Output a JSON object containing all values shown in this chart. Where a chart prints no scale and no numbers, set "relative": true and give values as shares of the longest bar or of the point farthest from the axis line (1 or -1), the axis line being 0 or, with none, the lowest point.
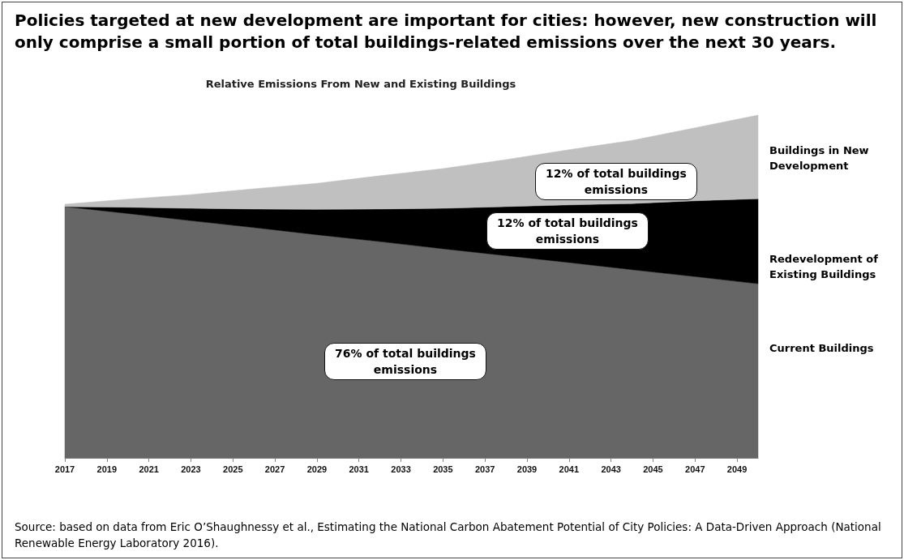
{
  "chart_data": {
    "type": "area",
    "stacked": true,
    "relative": true,
    "title": "Policies targeted at new development are important for cities: however, new construction will only comprise a small portion of total buildings-related emissions over the next 30 years.",
    "subtitle": "Relative Emissions From New and Existing Buildings",
    "x": [
      2017,
      2020,
      2023,
      2026,
      2029,
      2032,
      2035,
      2038,
      2041,
      2044,
      2047,
      2050
    ],
    "xlim": [
      2017,
      2050
    ],
    "xticks": [
      2017,
      2019,
      2021,
      2023,
      2025,
      2027,
      2029,
      2031,
      2033,
      2035,
      2037,
      2039,
      2041,
      2043,
      2045,
      2047,
      2049
    ],
    "series": [
      {
        "name": "Current Buildings",
        "color": "#666666",
        "values": [
          0.733,
          0.713,
          0.692,
          0.672,
          0.651,
          0.631,
          0.61,
          0.59,
          0.57,
          0.549,
          0.529,
          0.508
        ]
      },
      {
        "name": "Redevelopment of Existing Buildings",
        "color": "#000000",
        "values": [
          0,
          0.018,
          0.036,
          0.054,
          0.074,
          0.095,
          0.118,
          0.143,
          0.168,
          0.193,
          0.221,
          0.248
        ]
      },
      {
        "name": "Buildings in New Development",
        "color": "#c0c0c0",
        "values": [
          0.007,
          0.024,
          0.04,
          0.059,
          0.076,
          0.097,
          0.116,
          0.137,
          0.161,
          0.184,
          0.213,
          0.244
        ]
      }
    ],
    "annotations": [
      "12% of total buildings emissions",
      "12% of total buildings emissions",
      "76% of total buildings emissions",
      "Source: based on data from Eric O’Shaughnessy et al., Estimating the National Carbon Abatement Potential of City Policies: A Data-Driven Approach (National Renewable Energy Laboratory 2016)."
    ],
    "legend": false
  }
}
